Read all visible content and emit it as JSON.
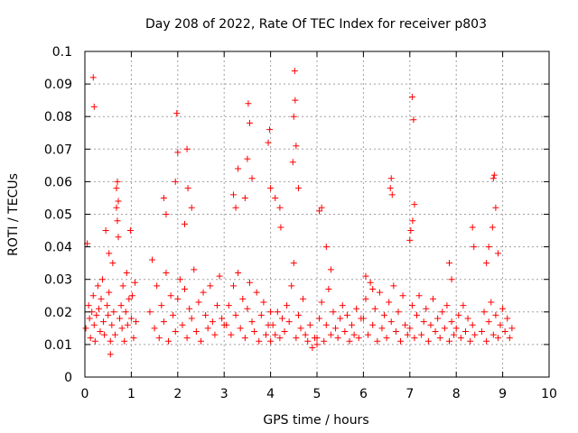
{
  "chart_data": {
    "type": "scatter",
    "title": "Day 208 of 2022, Rate Of TEC Index for receiver p803",
    "xlabel": "GPS time / hours",
    "ylabel": "ROTI / TECUs",
    "xlim": [
      0,
      10
    ],
    "ylim": [
      0,
      0.1
    ],
    "x_ticks": [
      "0",
      "1",
      "2",
      "3",
      "4",
      "5",
      "6",
      "7",
      "8",
      "9",
      "10"
    ],
    "y_ticks": [
      "0",
      "0.01",
      "0.02",
      "0.03",
      "0.04",
      "0.05",
      "0.06",
      "0.07",
      "0.08",
      "0.09",
      "0.1"
    ],
    "x_tick_values": [
      0,
      1,
      2,
      3,
      4,
      5,
      6,
      7,
      8,
      9,
      10
    ],
    "y_tick_values": [
      0,
      0.01,
      0.02,
      0.03,
      0.04,
      0.05,
      0.06,
      0.07,
      0.08,
      0.09,
      0.1
    ],
    "grid": true,
    "marker": "+",
    "color": "#ff0000",
    "series": [
      {
        "name": "ROTI",
        "x": [
          0.02,
          0.05,
          0.08,
          0.1,
          0.12,
          0.15,
          0.18,
          0.2,
          0.22,
          0.25,
          0.28,
          0.3,
          0.33,
          0.35,
          0.38,
          0.4,
          0.42,
          0.45,
          0.48,
          0.5,
          0.52,
          0.55,
          0.58,
          0.6,
          0.62,
          0.65,
          0.68,
          0.7,
          0.72,
          0.75,
          0.78,
          0.8,
          0.82,
          0.85,
          0.88,
          0.9,
          0.92,
          0.95,
          0.98,
          1.0,
          1.02,
          1.05,
          1.08,
          1.1,
          0.18,
          0.2,
          0.68,
          0.7,
          0.72,
          0.52,
          0.55,
          1.4,
          1.45,
          1.5,
          1.55,
          1.6,
          1.65,
          1.7,
          1.75,
          1.8,
          1.85,
          1.9,
          1.95,
          2.0,
          2.05,
          2.1,
          2.15,
          2.2,
          2.25,
          2.3,
          2.35,
          2.4,
          2.45,
          2.5,
          2.55,
          2.6,
          2.65,
          2.7,
          2.75,
          2.8,
          2.85,
          2.9,
          2.95,
          3.0,
          1.98,
          2.0,
          1.95,
          2.2,
          2.22,
          1.7,
          1.75,
          2.3,
          2.15,
          3.05,
          3.1,
          3.15,
          3.2,
          3.25,
          3.3,
          3.35,
          3.4,
          3.45,
          3.5,
          3.55,
          3.6,
          3.65,
          3.7,
          3.75,
          3.8,
          3.85,
          3.9,
          3.95,
          4.0,
          3.52,
          3.55,
          3.5,
          3.6,
          3.45,
          3.3,
          3.2,
          3.25,
          4.0,
          4.05,
          4.1,
          4.15,
          4.2,
          4.25,
          4.3,
          4.35,
          4.4,
          4.45,
          4.5,
          4.55,
          4.6,
          4.65,
          4.7,
          4.75,
          4.8,
          4.85,
          4.9,
          4.95,
          5.0,
          4.52,
          4.53,
          4.5,
          4.55,
          4.48,
          4.6,
          3.98,
          3.95,
          4.0,
          4.2,
          4.22,
          4.1,
          5.0,
          5.05,
          5.1,
          5.15,
          5.2,
          5.25,
          5.3,
          5.35,
          5.4,
          5.45,
          5.5,
          5.55,
          5.6,
          5.65,
          5.7,
          5.75,
          5.8,
          5.85,
          5.9,
          5.95,
          5.05,
          5.1,
          5.2,
          5.3,
          6.0,
          6.05,
          6.1,
          6.15,
          6.2,
          6.25,
          6.3,
          6.35,
          6.4,
          6.45,
          6.5,
          6.55,
          6.6,
          6.65,
          6.7,
          6.75,
          6.8,
          6.85,
          6.9,
          6.95,
          6.6,
          6.62,
          6.58,
          6.05,
          6.2,
          7.0,
          7.05,
          7.1,
          7.15,
          7.2,
          7.25,
          7.3,
          7.35,
          7.4,
          7.45,
          7.5,
          7.55,
          7.6,
          7.65,
          7.7,
          7.75,
          7.8,
          7.85,
          7.9,
          7.95,
          7.05,
          7.08,
          7.1,
          7.02,
          7.0,
          7.06,
          8.0,
          8.05,
          8.1,
          8.15,
          8.2,
          8.25,
          8.3,
          8.35,
          8.4,
          7.85,
          7.9,
          8.35,
          8.38,
          8.55,
          8.6,
          8.65,
          8.7,
          8.75,
          8.8,
          8.85,
          8.9,
          8.95,
          9.0,
          9.05,
          9.1,
          9.15,
          9.2,
          8.8,
          8.82,
          8.85,
          8.78,
          8.7,
          8.9,
          8.65
        ],
        "y": [
          0.015,
          0.041,
          0.022,
          0.018,
          0.012,
          0.02,
          0.025,
          0.016,
          0.011,
          0.019,
          0.028,
          0.021,
          0.014,
          0.024,
          0.03,
          0.017,
          0.013,
          0.045,
          0.022,
          0.019,
          0.026,
          0.011,
          0.016,
          0.035,
          0.02,
          0.013,
          0.058,
          0.06,
          0.054,
          0.018,
          0.022,
          0.015,
          0.028,
          0.011,
          0.02,
          0.032,
          0.016,
          0.024,
          0.045,
          0.018,
          0.025,
          0.012,
          0.029,
          0.017,
          0.092,
          0.083,
          0.052,
          0.048,
          0.043,
          0.038,
          0.007,
          0.02,
          0.036,
          0.015,
          0.028,
          0.012,
          0.022,
          0.017,
          0.032,
          0.011,
          0.025,
          0.019,
          0.014,
          0.024,
          0.03,
          0.016,
          0.027,
          0.012,
          0.021,
          0.018,
          0.033,
          0.014,
          0.023,
          0.011,
          0.026,
          0.019,
          0.015,
          0.028,
          0.017,
          0.013,
          0.022,
          0.031,
          0.018,
          0.016,
          0.081,
          0.069,
          0.06,
          0.07,
          0.058,
          0.055,
          0.05,
          0.052,
          0.047,
          0.016,
          0.022,
          0.013,
          0.028,
          0.019,
          0.032,
          0.015,
          0.024,
          0.012,
          0.021,
          0.029,
          0.017,
          0.014,
          0.026,
          0.011,
          0.019,
          0.023,
          0.013,
          0.016,
          0.02,
          0.084,
          0.078,
          0.067,
          0.061,
          0.055,
          0.064,
          0.056,
          0.052,
          0.011,
          0.016,
          0.013,
          0.02,
          0.012,
          0.018,
          0.014,
          0.022,
          0.017,
          0.028,
          0.035,
          0.012,
          0.019,
          0.015,
          0.024,
          0.013,
          0.011,
          0.016,
          0.009,
          0.012,
          0.01,
          0.094,
          0.085,
          0.08,
          0.071,
          0.066,
          0.058,
          0.076,
          0.072,
          0.058,
          0.052,
          0.046,
          0.055,
          0.012,
          0.018,
          0.023,
          0.011,
          0.016,
          0.027,
          0.013,
          0.02,
          0.015,
          0.012,
          0.018,
          0.022,
          0.014,
          0.019,
          0.011,
          0.016,
          0.013,
          0.021,
          0.012,
          0.018,
          0.051,
          0.052,
          0.04,
          0.033,
          0.018,
          0.024,
          0.013,
          0.029,
          0.016,
          0.021,
          0.011,
          0.026,
          0.015,
          0.019,
          0.012,
          0.023,
          0.017,
          0.028,
          0.014,
          0.02,
          0.011,
          0.025,
          0.016,
          0.013,
          0.061,
          0.056,
          0.058,
          0.031,
          0.027,
          0.015,
          0.022,
          0.012,
          0.019,
          0.025,
          0.013,
          0.017,
          0.021,
          0.011,
          0.016,
          0.024,
          0.014,
          0.018,
          0.012,
          0.02,
          0.015,
          0.022,
          0.011,
          0.017,
          0.013,
          0.086,
          0.079,
          0.053,
          0.045,
          0.042,
          0.048,
          0.015,
          0.019,
          0.012,
          0.022,
          0.014,
          0.018,
          0.011,
          0.016,
          0.013,
          0.035,
          0.03,
          0.046,
          0.04,
          0.014,
          0.02,
          0.011,
          0.017,
          0.023,
          0.013,
          0.019,
          0.012,
          0.016,
          0.021,
          0.014,
          0.018,
          0.012,
          0.015,
          0.061,
          0.062,
          0.052,
          0.046,
          0.04,
          0.038,
          0.035
        ]
      }
    ]
  }
}
